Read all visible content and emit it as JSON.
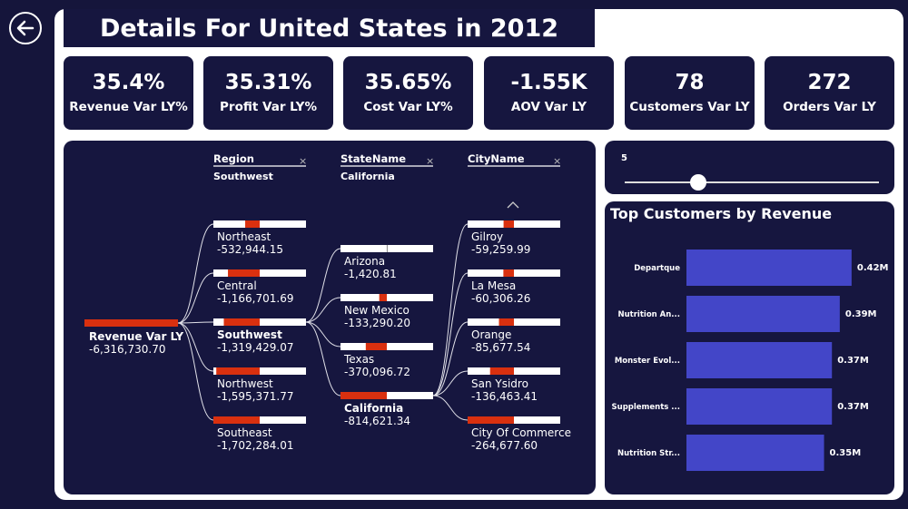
{
  "title": "Details For United States in 2012",
  "back_icon": "arrow-left-circle-icon",
  "kpis": [
    {
      "value": "35.4%",
      "label": "Revenue Var LY%"
    },
    {
      "value": "35.31%",
      "label": "Profit Var LY%"
    },
    {
      "value": "35.65%",
      "label": "Cost Var LY%"
    },
    {
      "value": "-1.55K",
      "label": "AOV Var LY"
    },
    {
      "value": "78",
      "label": "Customers Var LY"
    },
    {
      "value": "272",
      "label": "Orders Var LY"
    }
  ],
  "colors": {
    "bg": "#16163f",
    "bar_red": "#d9300f",
    "bar_blue": "#4346c8"
  },
  "tree": {
    "root": {
      "label": "Revenue Var LY",
      "value": "-6,316,730.70"
    },
    "levels": [
      {
        "header": "Region",
        "selected": "Southwest",
        "items": [
          {
            "label": "Northeast",
            "value": "-532,944.15",
            "num": -532944.15
          },
          {
            "label": "Central",
            "value": "-1,166,701.69",
            "num": -1166701.69
          },
          {
            "label": "Southwest",
            "value": "-1,319,429.07",
            "num": -1319429.07,
            "active": true
          },
          {
            "label": "Northwest",
            "value": "-1,595,371.77",
            "num": -1595371.77
          },
          {
            "label": "Southeast",
            "value": "-1,702,284.01",
            "num": -1702284.01
          }
        ]
      },
      {
        "header": "StateName",
        "selected": "California",
        "items": [
          {
            "label": "Arizona",
            "value": "-1,420.81",
            "num": -1420.81
          },
          {
            "label": "New Mexico",
            "value": "-133,290.20",
            "num": -133290.2
          },
          {
            "label": "Texas",
            "value": "-370,096.72",
            "num": -370096.72
          },
          {
            "label": "California",
            "value": "-814,621.34",
            "num": -814621.34,
            "active": true
          }
        ]
      },
      {
        "header": "CityName",
        "selected": "",
        "items": [
          {
            "label": "Gilroy",
            "value": "-59,259.99",
            "num": -59259.99
          },
          {
            "label": "La Mesa",
            "value": "-60,306.26",
            "num": -60306.26
          },
          {
            "label": "Orange",
            "value": "-85,677.54",
            "num": -85677.54
          },
          {
            "label": "San Ysidro",
            "value": "-136,463.41",
            "num": -136463.41
          },
          {
            "label": "City Of Commerce",
            "value": "-264,677.60",
            "num": -264677.6
          }
        ]
      }
    ]
  },
  "slider": {
    "label": "5",
    "value": 5,
    "fraction": 0.29
  },
  "chart_data": {
    "type": "bar",
    "orientation": "horizontal",
    "title": "Top Customers by Revenue",
    "categories": [
      "Departque",
      "Nutrition An...",
      "Monster Evol...",
      "Supplements ...",
      "Nutrition Str..."
    ],
    "values": [
      0.42,
      0.39,
      0.37,
      0.37,
      0.35
    ],
    "data_labels": [
      "0.42M",
      "0.39M",
      "0.37M",
      "0.37M",
      "0.35M"
    ],
    "unit": "M",
    "grid": false
  }
}
